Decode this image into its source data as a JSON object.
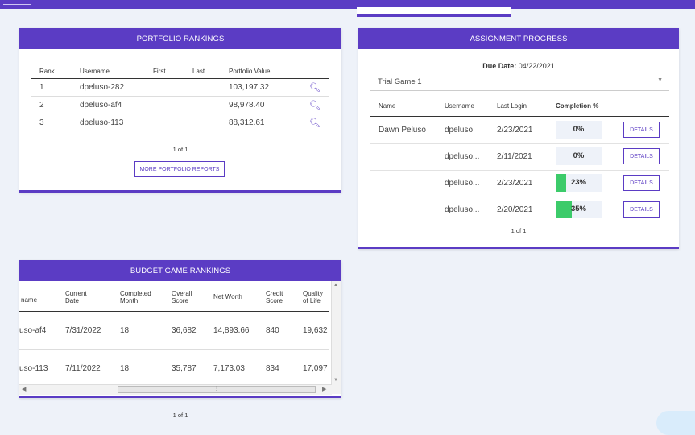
{
  "portfolio": {
    "title": "PORTFOLIO RANKINGS",
    "columns": [
      "Rank",
      "Username",
      "First",
      "Last",
      "Portfolio Value"
    ],
    "rows": [
      {
        "rank": "1",
        "username": "dpeluso-282",
        "first": "",
        "last": "",
        "value": "103,197.32"
      },
      {
        "rank": "2",
        "username": "dpeluso-af4",
        "first": "",
        "last": "",
        "value": "98,978.40"
      },
      {
        "rank": "3",
        "username": "dpeluso-113",
        "first": "",
        "last": "",
        "value": "88,312.61"
      }
    ],
    "pager": "1 of 1",
    "more_button": "MORE PORTFOLIO REPORTS"
  },
  "assignment": {
    "title": "ASSIGNMENT PROGRESS",
    "due_label": "Due Date:",
    "due_date": "04/22/2021",
    "select_value": "Trial Game 1",
    "columns": [
      "Name",
      "Username",
      "Last Login",
      "Completion %"
    ],
    "rows": [
      {
        "name": "Dawn Peluso",
        "username": "dpeluso",
        "last_login": "2/23/2021",
        "completion": "0%",
        "completion_value": 0
      },
      {
        "name": "",
        "username": "dpeluso...",
        "last_login": "2/11/2021",
        "completion": "0%",
        "completion_value": 0
      },
      {
        "name": "",
        "username": "dpeluso...",
        "last_login": "2/23/2021",
        "completion": "23%",
        "completion_value": 23
      },
      {
        "name": "",
        "username": "dpeluso...",
        "last_login": "2/20/2021",
        "completion": "35%",
        "completion_value": 35
      }
    ],
    "details_label": "DETAILS",
    "pager": "1 of 1",
    "accent": "#5b3cc4",
    "progress_color": "#3ccb6a"
  },
  "budget": {
    "title": "BUDGET GAME RANKINGS",
    "columns": {
      "username": "name",
      "current_date": [
        "Current",
        "Date"
      ],
      "completed_month": [
        "Completed",
        "Month"
      ],
      "overall_score": [
        "Overall",
        "Score"
      ],
      "net_worth": "Net Worth",
      "credit_score": [
        "Credit",
        "Score"
      ],
      "quality_of_life": [
        "Quality",
        "of Life"
      ]
    },
    "rows": [
      {
        "username": "uso-af4",
        "current_date": "7/31/2022",
        "completed_month": "18",
        "overall_score": "36,682",
        "net_worth": "14,893.66",
        "credit_score": "840",
        "quality_of_life": "19,632"
      },
      {
        "username": "uso-113",
        "current_date": "7/11/2022",
        "completed_month": "18",
        "overall_score": "35,787",
        "net_worth": "7,173.03",
        "credit_score": "834",
        "quality_of_life": "17,097"
      }
    ],
    "pager": "1 of 1"
  }
}
